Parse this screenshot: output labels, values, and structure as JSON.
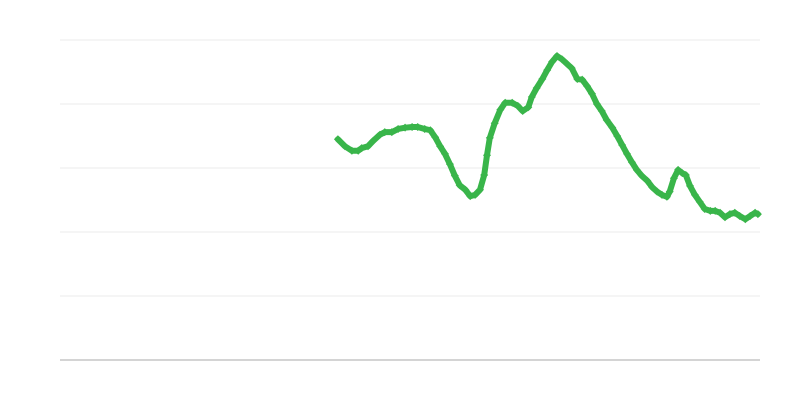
{
  "chart_data": {
    "type": "line",
    "title": "",
    "xlabel": "",
    "ylabel": "",
    "xlim": [
      0,
      100
    ],
    "ylim": [
      0,
      5
    ],
    "grid": true,
    "legend": "none",
    "marker": "diamond",
    "color": "#39b54a",
    "gridline_color": "#ebebeb",
    "baseline_color": "#aaaaaa",
    "series": [
      {
        "x": [
          39.7,
          40.7,
          41.7,
          42.6,
          43.1,
          44.0,
          44.7,
          45.7,
          46.4,
          47.4,
          48.3,
          49.3,
          50.3,
          51.1,
          52.1,
          52.9,
          53.6,
          54.3,
          55.0,
          55.7,
          56.4,
          57.1,
          57.9,
          58.6,
          59.3,
          60.0,
          60.6,
          61.0,
          61.4,
          62.1,
          62.9,
          63.6,
          64.6,
          65.4,
          66.1,
          66.9,
          67.4,
          68.1,
          68.9,
          69.6,
          70.3,
          71.0,
          71.7,
          72.4,
          73.1,
          73.9,
          74.6,
          75.3,
          76.0,
          76.7,
          77.4,
          78.1,
          78.9,
          79.6,
          80.3,
          81.0,
          81.7,
          82.4,
          83.1,
          83.9,
          84.6,
          85.3,
          86.0,
          86.7,
          87.1,
          87.7,
          88.3,
          88.9,
          89.4,
          90.0,
          90.7,
          91.4,
          92.1,
          92.9,
          93.6,
          94.3,
          95.0,
          95.7,
          96.4,
          97.1,
          97.9,
          98.6,
          99.3,
          99.7
        ],
        "y": [
          3.45,
          3.34,
          3.27,
          3.27,
          3.31,
          3.34,
          3.42,
          3.52,
          3.56,
          3.56,
          3.61,
          3.63,
          3.64,
          3.64,
          3.61,
          3.59,
          3.48,
          3.34,
          3.22,
          3.06,
          2.88,
          2.73,
          2.66,
          2.56,
          2.58,
          2.66,
          2.89,
          3.2,
          3.47,
          3.7,
          3.91,
          4.02,
          4.02,
          3.97,
          3.89,
          3.95,
          4.11,
          4.25,
          4.39,
          4.53,
          4.66,
          4.75,
          4.7,
          4.63,
          4.56,
          4.39,
          4.38,
          4.28,
          4.16,
          4.0,
          3.89,
          3.75,
          3.63,
          3.5,
          3.36,
          3.22,
          3.09,
          2.97,
          2.88,
          2.8,
          2.7,
          2.63,
          2.58,
          2.55,
          2.63,
          2.84,
          2.97,
          2.92,
          2.89,
          2.72,
          2.58,
          2.47,
          2.36,
          2.33,
          2.33,
          2.3,
          2.23,
          2.28,
          2.3,
          2.25,
          2.2,
          2.25,
          2.3,
          2.28
        ]
      }
    ]
  }
}
